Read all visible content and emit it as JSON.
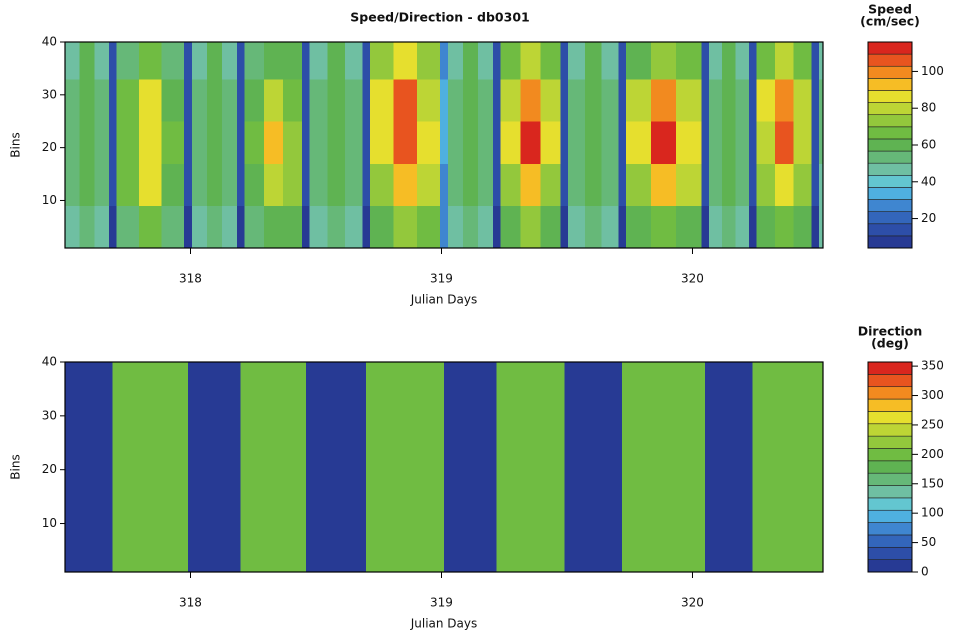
{
  "chart_data": [
    {
      "type": "heatmap",
      "title": "Speed/Direction - db0301",
      "xlabel": "Julian Days",
      "ylabel": "Bins",
      "colorbar_title": [
        "Speed",
        "(cm/sec)"
      ],
      "xlim": [
        317.5,
        320.52
      ],
      "ylim": [
        1,
        40
      ],
      "xticks": [
        318,
        319,
        320
      ],
      "yticks": [
        10,
        20,
        30,
        40
      ],
      "zlim": [
        4,
        116
      ],
      "zticks": [
        20,
        40,
        60,
        80,
        100
      ],
      "colormap": [
        "#273a94",
        "#2d4ea8",
        "#3366bb",
        "#3f86d0",
        "#4fb0e0",
        "#63c6d0",
        "#6fbfa2",
        "#66b878",
        "#5fb352",
        "#70bc42",
        "#93c83c",
        "#bdd535",
        "#e6df2e",
        "#f6bd25",
        "#f28a1f",
        "#e8541f",
        "#d9261e"
      ],
      "x_edges": [
        317.5,
        317.558,
        317.617,
        317.675,
        317.705,
        317.795,
        317.885,
        317.975,
        318.005,
        318.065,
        318.125,
        318.185,
        318.215,
        318.292,
        318.368,
        318.445,
        318.475,
        318.545,
        318.615,
        318.685,
        318.715,
        318.808,
        318.902,
        318.995,
        319.025,
        319.085,
        319.145,
        319.205,
        319.235,
        319.315,
        319.395,
        319.475,
        319.505,
        319.572,
        319.638,
        319.705,
        319.735,
        319.835,
        319.935,
        320.035,
        320.065,
        320.118,
        320.172,
        320.225,
        320.255,
        320.328,
        320.402,
        320.475,
        320.505,
        320.52
      ],
      "y_edges": [
        1,
        9,
        17,
        25,
        33,
        40
      ],
      "z": [
        [
          45,
          52,
          45,
          8,
          55,
          65,
          55,
          8,
          45,
          52,
          45,
          8,
          55,
          62,
          58,
          8,
          45,
          52,
          45,
          8,
          60,
          72,
          65,
          25,
          45,
          52,
          45,
          8,
          58,
          70,
          62,
          8,
          45,
          52,
          45,
          8,
          58,
          68,
          60,
          8,
          45,
          52,
          45,
          8,
          58,
          68,
          60,
          8,
          45
        ],
        [
          52,
          60,
          52,
          12,
          65,
          85,
          62,
          12,
          52,
          60,
          52,
          12,
          62,
          78,
          70,
          12,
          52,
          60,
          52,
          12,
          75,
          95,
          80,
          30,
          52,
          60,
          52,
          12,
          72,
          92,
          75,
          12,
          52,
          60,
          52,
          12,
          72,
          95,
          78,
          12,
          52,
          60,
          52,
          12,
          70,
          88,
          72,
          12,
          50
        ],
        [
          55,
          62,
          55,
          14,
          68,
          88,
          65,
          14,
          55,
          62,
          55,
          14,
          65,
          92,
          72,
          14,
          55,
          62,
          55,
          14,
          85,
          108,
          85,
          32,
          55,
          62,
          55,
          14,
          85,
          110,
          85,
          14,
          55,
          62,
          55,
          14,
          88,
          112,
          88,
          14,
          55,
          62,
          55,
          14,
          82,
          105,
          82,
          14,
          52
        ],
        [
          55,
          62,
          55,
          14,
          65,
          85,
          62,
          14,
          55,
          62,
          55,
          14,
          62,
          80,
          68,
          14,
          55,
          62,
          55,
          14,
          85,
          105,
          82,
          32,
          55,
          62,
          55,
          14,
          80,
          100,
          78,
          14,
          55,
          62,
          55,
          14,
          80,
          100,
          80,
          14,
          55,
          62,
          55,
          14,
          85,
          102,
          80,
          14,
          52
        ],
        [
          50,
          58,
          50,
          12,
          55,
          65,
          55,
          12,
          50,
          58,
          50,
          12,
          55,
          62,
          58,
          12,
          50,
          58,
          50,
          12,
          70,
          88,
          72,
          30,
          50,
          58,
          50,
          12,
          65,
          82,
          68,
          12,
          50,
          58,
          50,
          12,
          62,
          75,
          65,
          12,
          50,
          58,
          50,
          12,
          65,
          82,
          68,
          12,
          48
        ]
      ]
    },
    {
      "type": "heatmap",
      "xlabel": "Julian Days",
      "ylabel": "Bins",
      "colorbar_title": [
        "Direction",
        "(deg)"
      ],
      "xlim": [
        317.5,
        320.52
      ],
      "ylim": [
        1,
        40
      ],
      "xticks": [
        318,
        319,
        320
      ],
      "yticks": [
        10,
        20,
        30,
        40
      ],
      "zlim": [
        0,
        357
      ],
      "zticks": [
        0,
        50,
        100,
        150,
        200,
        250,
        300,
        350
      ],
      "colormap": [
        "#273a94",
        "#2d4ea8",
        "#3366bb",
        "#3f86d0",
        "#4fb0e0",
        "#63c6d0",
        "#6fbfa2",
        "#66b878",
        "#5fb352",
        "#70bc42",
        "#93c83c",
        "#bdd535",
        "#e6df2e",
        "#f6bd25",
        "#f28a1f",
        "#e8541f",
        "#d9261e"
      ],
      "x_edges": [
        317.5,
        317.69,
        317.99,
        318.2,
        318.46,
        318.7,
        319.01,
        319.22,
        319.49,
        319.72,
        320.05,
        320.24,
        320.52
      ],
      "y_edges": [
        1,
        40
      ],
      "z": [
        [
          8,
          192,
          8,
          192,
          8,
          192,
          8,
          192,
          8,
          192,
          8,
          192
        ]
      ]
    }
  ]
}
